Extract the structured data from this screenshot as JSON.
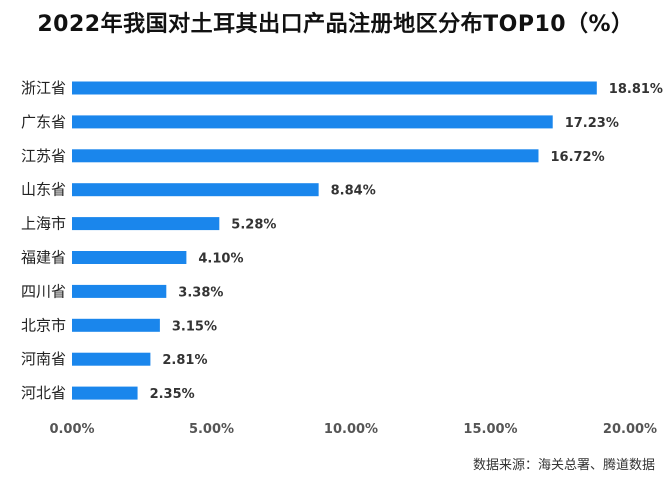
{
  "chart_data": {
    "type": "bar",
    "orientation": "horizontal",
    "title": "2022年我国对土耳其出口产品注册地区分布TOP10（%）",
    "categories": [
      "浙江省",
      "广东省",
      "江苏省",
      "山东省",
      "上海市",
      "福建省",
      "四川省",
      "北京市",
      "河南省",
      "河北省"
    ],
    "values": [
      18.81,
      17.23,
      16.72,
      8.84,
      5.28,
      4.1,
      3.38,
      3.15,
      2.81,
      2.35
    ],
    "data_labels": [
      "18.81%",
      "17.23%",
      "16.72%",
      "8.84%",
      "5.28%",
      "4.10%",
      "3.38%",
      "3.15%",
      "2.81%",
      "2.35%"
    ],
    "x_ticks": [
      0,
      5,
      10,
      15,
      20
    ],
    "x_tick_labels": [
      "0.00%",
      "5.00%",
      "10.00%",
      "15.00%",
      "20.00%"
    ],
    "xlim": [
      0,
      20
    ],
    "xlabel": "",
    "ylabel": "",
    "grid": false,
    "legend": "none",
    "bar_color": "#1a86ec"
  },
  "source_text": "数据来源：海关总署、腾道数据"
}
